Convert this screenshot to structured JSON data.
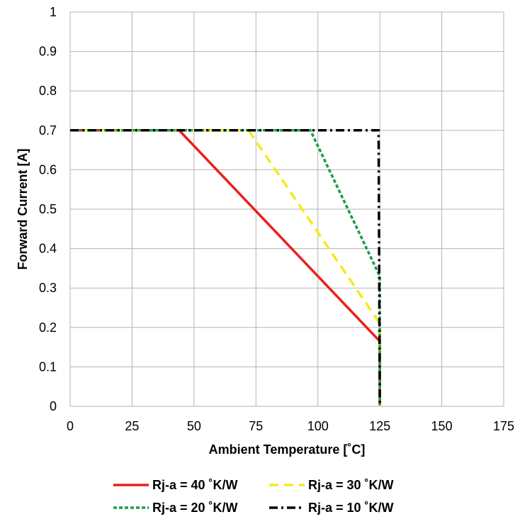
{
  "chart_data": {
    "type": "line",
    "title": "",
    "xlabel": "Ambient  Temperature [˚C]",
    "ylabel": "Forward Current [A]",
    "xlim": [
      0,
      175
    ],
    "ylim": [
      0,
      1
    ],
    "x_ticks": [
      "0",
      "25",
      "50",
      "75",
      "100",
      "125",
      "150",
      "175"
    ],
    "y_ticks": [
      "0",
      "0.1",
      "0.2",
      "0.3",
      "0.4",
      "0.5",
      "0.6",
      "0.7",
      "0.8",
      "0.9",
      "1"
    ],
    "grid": true,
    "legend_position": "bottom",
    "series": [
      {
        "name": "Rj-a = 40 ˚K/W",
        "color": "#e8211c",
        "dash": "solid",
        "points": [
          [
            0,
            0.7
          ],
          [
            44,
            0.7
          ],
          [
            125,
            0.165
          ],
          [
            125,
            0
          ]
        ]
      },
      {
        "name": "Rj-a = 30 ˚K/W",
        "color": "#f5ea1a",
        "dash": "dashed",
        "points": [
          [
            0,
            0.7
          ],
          [
            72,
            0.7
          ],
          [
            125,
            0.21
          ],
          [
            125,
            0
          ]
        ]
      },
      {
        "name": "Rj-a = 20 ˚K/W",
        "color": "#1a9e4a",
        "dash": "dotted",
        "points": [
          [
            0,
            0.7
          ],
          [
            97,
            0.7
          ],
          [
            125,
            0.33
          ],
          [
            125,
            0
          ]
        ]
      },
      {
        "name": "Rj-a = 10 ˚K/W",
        "color": "#000000",
        "dash": "dashdot",
        "points": [
          [
            0,
            0.7
          ],
          [
            124,
            0.7
          ],
          [
            124.5,
            0.7
          ],
          [
            125,
            0
          ]
        ]
      }
    ]
  }
}
